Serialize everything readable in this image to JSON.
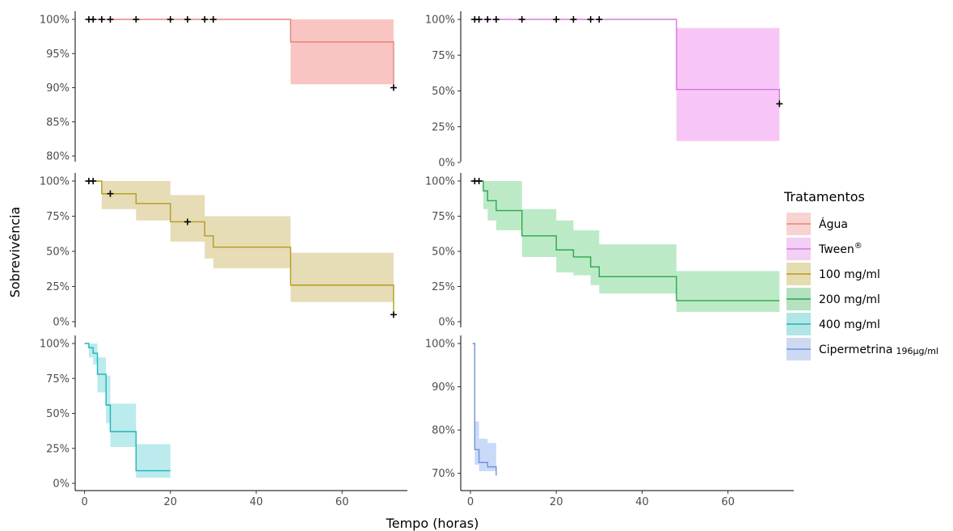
{
  "xlabel": "Tempo (horas)",
  "ylabel": "Sobrevivência",
  "legend": {
    "title": "Tratamentos",
    "items": [
      {
        "label": "Água",
        "sup": "",
        "suffix": "",
        "color": "#e8837a"
      },
      {
        "label": "Tween",
        "sup": "®",
        "suffix": "",
        "color": "#d877e0"
      },
      {
        "label": "100 mg/ml",
        "sup": "",
        "suffix": "",
        "color": "#b59c1c"
      },
      {
        "label": "200 mg/ml",
        "sup": "",
        "suffix": "",
        "color": "#2aa84a"
      },
      {
        "label": "400 mg/ml",
        "sup": "",
        "suffix": "",
        "color": "#1fb5b8"
      },
      {
        "label": "Cipermetrina",
        "sup": "",
        "suffix": "196µg/ml",
        "color": "#6f93d6"
      }
    ]
  },
  "chart_data": [
    {
      "type": "line",
      "series_name": "Água",
      "color": "#e8837a",
      "fill": "#f7b2ad",
      "x_ticks": [
        0,
        20,
        40,
        60
      ],
      "ylim": [
        80,
        100
      ],
      "y_ticks": [
        80,
        85,
        90,
        95,
        100
      ],
      "y_tick_labels": [
        "80%",
        "85%",
        "90%",
        "95%",
        "100%"
      ],
      "steps": [
        {
          "x": 0,
          "y": 100
        },
        {
          "x": 48,
          "y": 96.7
        },
        {
          "x": 72,
          "y": 90
        }
      ],
      "band": [
        {
          "x": 0,
          "lo": 100,
          "hi": 100
        },
        {
          "x": 48,
          "lo": 90.5,
          "hi": 100
        },
        {
          "x": 72,
          "lo": 90.5,
          "hi": 100
        }
      ],
      "censors": [
        {
          "x": 1,
          "y": 100
        },
        {
          "x": 2,
          "y": 100
        },
        {
          "x": 4,
          "y": 100
        },
        {
          "x": 6,
          "y": 100
        },
        {
          "x": 12,
          "y": 100
        },
        {
          "x": 20,
          "y": 100
        },
        {
          "x": 24,
          "y": 100
        },
        {
          "x": 28,
          "y": 100
        },
        {
          "x": 30,
          "y": 100
        },
        {
          "x": 72,
          "y": 90
        }
      ]
    },
    {
      "type": "line",
      "series_name": "Tween®",
      "color": "#d877e0",
      "fill": "#f4b3f3",
      "x_ticks": [
        0,
        20,
        40,
        60
      ],
      "ylim": [
        0,
        100
      ],
      "y_ticks": [
        0,
        25,
        50,
        75,
        100
      ],
      "y_tick_labels": [
        "0%",
        "25%",
        "50%",
        "75%",
        "100%"
      ],
      "steps": [
        {
          "x": 0,
          "y": 100
        },
        {
          "x": 48,
          "y": 51
        },
        {
          "x": 72,
          "y": 41
        }
      ],
      "band": [
        {
          "x": 0,
          "lo": 100,
          "hi": 100
        },
        {
          "x": 48,
          "lo": 15,
          "hi": 94
        },
        {
          "x": 72,
          "lo": 15,
          "hi": 94
        }
      ],
      "censors": [
        {
          "x": 1,
          "y": 100
        },
        {
          "x": 2,
          "y": 100
        },
        {
          "x": 4,
          "y": 100
        },
        {
          "x": 6,
          "y": 100
        },
        {
          "x": 12,
          "y": 100
        },
        {
          "x": 20,
          "y": 100
        },
        {
          "x": 24,
          "y": 100
        },
        {
          "x": 28,
          "y": 100
        },
        {
          "x": 30,
          "y": 100
        },
        {
          "x": 72,
          "y": 41
        }
      ]
    },
    {
      "type": "line",
      "series_name": "100 mg/ml",
      "color": "#b59c1c",
      "fill": "#ddd09e",
      "x_ticks": [
        0,
        20,
        40,
        60
      ],
      "ylim": [
        0,
        100
      ],
      "y_ticks": [
        0,
        25,
        50,
        75,
        100
      ],
      "y_tick_labels": [
        "0%",
        "25%",
        "50%",
        "75%",
        "100%"
      ],
      "steps": [
        {
          "x": 0,
          "y": 100
        },
        {
          "x": 4,
          "y": 91
        },
        {
          "x": 12,
          "y": 84
        },
        {
          "x": 20,
          "y": 71
        },
        {
          "x": 28,
          "y": 61
        },
        {
          "x": 30,
          "y": 53
        },
        {
          "x": 48,
          "y": 26
        },
        {
          "x": 72,
          "y": 5
        }
      ],
      "band": [
        {
          "x": 0,
          "lo": 100,
          "hi": 100
        },
        {
          "x": 4,
          "lo": 80,
          "hi": 100
        },
        {
          "x": 12,
          "lo": 72,
          "hi": 100
        },
        {
          "x": 20,
          "lo": 57,
          "hi": 90
        },
        {
          "x": 28,
          "lo": 45,
          "hi": 75
        },
        {
          "x": 30,
          "lo": 38,
          "hi": 75
        },
        {
          "x": 48,
          "lo": 14,
          "hi": 49
        },
        {
          "x": 72,
          "lo": 14,
          "hi": 49
        }
      ],
      "censors": [
        {
          "x": 1,
          "y": 100
        },
        {
          "x": 2,
          "y": 100
        },
        {
          "x": 6,
          "y": 91
        },
        {
          "x": 24,
          "y": 71
        },
        {
          "x": 72,
          "y": 5
        }
      ]
    },
    {
      "type": "line",
      "series_name": "200 mg/ml",
      "color": "#2aa84a",
      "fill": "#a6e3b4",
      "x_ticks": [
        0,
        20,
        40,
        60
      ],
      "ylim": [
        0,
        100
      ],
      "y_ticks": [
        0,
        25,
        50,
        75,
        100
      ],
      "y_tick_labels": [
        "0%",
        "25%",
        "50%",
        "75%",
        "100%"
      ],
      "steps": [
        {
          "x": 0,
          "y": 100
        },
        {
          "x": 3,
          "y": 93
        },
        {
          "x": 4,
          "y": 86
        },
        {
          "x": 6,
          "y": 79
        },
        {
          "x": 12,
          "y": 61
        },
        {
          "x": 20,
          "y": 51
        },
        {
          "x": 24,
          "y": 46
        },
        {
          "x": 28,
          "y": 39
        },
        {
          "x": 30,
          "y": 32
        },
        {
          "x": 48,
          "y": 15
        },
        {
          "x": 72,
          "y": 15
        }
      ],
      "band": [
        {
          "x": 0,
          "lo": 100,
          "hi": 100
        },
        {
          "x": 3,
          "lo": 80,
          "hi": 100
        },
        {
          "x": 4,
          "lo": 72,
          "hi": 100
        },
        {
          "x": 6,
          "lo": 65,
          "hi": 100
        },
        {
          "x": 12,
          "lo": 46,
          "hi": 80
        },
        {
          "x": 20,
          "lo": 35,
          "hi": 72
        },
        {
          "x": 24,
          "lo": 33,
          "hi": 65
        },
        {
          "x": 28,
          "lo": 26,
          "hi": 65
        },
        {
          "x": 30,
          "lo": 20,
          "hi": 55
        },
        {
          "x": 48,
          "lo": 7,
          "hi": 36
        },
        {
          "x": 72,
          "lo": 7,
          "hi": 36
        }
      ],
      "censors": [
        {
          "x": 1,
          "y": 100
        },
        {
          "x": 2,
          "y": 100
        }
      ]
    },
    {
      "type": "line",
      "series_name": "400 mg/ml",
      "color": "#1fb5b8",
      "fill": "#a4e4e7",
      "x_ticks": [
        0,
        20,
        40,
        60
      ],
      "ylim": [
        0,
        100
      ],
      "y_ticks": [
        0,
        25,
        50,
        75,
        100
      ],
      "y_tick_labels": [
        "0%",
        "25%",
        "50%",
        "75%",
        "100%"
      ],
      "steps": [
        {
          "x": 0,
          "y": 100
        },
        {
          "x": 1,
          "y": 97
        },
        {
          "x": 2,
          "y": 93
        },
        {
          "x": 3,
          "y": 78
        },
        {
          "x": 5,
          "y": 56
        },
        {
          "x": 6,
          "y": 37
        },
        {
          "x": 12,
          "y": 9
        },
        {
          "x": 20,
          "y": 9
        }
      ],
      "band": [
        {
          "x": 0,
          "lo": 100,
          "hi": 100
        },
        {
          "x": 1,
          "lo": 90,
          "hi": 100
        },
        {
          "x": 2,
          "lo": 85,
          "hi": 100
        },
        {
          "x": 3,
          "lo": 65,
          "hi": 90
        },
        {
          "x": 5,
          "lo": 43,
          "hi": 77
        },
        {
          "x": 6,
          "lo": 26,
          "hi": 57
        },
        {
          "x": 12,
          "lo": 4,
          "hi": 28
        },
        {
          "x": 20,
          "lo": 4,
          "hi": 28
        }
      ],
      "censors": []
    },
    {
      "type": "line",
      "series_name": "Cipermetrina 196µg/ml",
      "color": "#6f93d6",
      "fill": "#b7cef5",
      "x_ticks": [
        0,
        20,
        40,
        60
      ],
      "ylim": [
        69,
        100
      ],
      "y_ticks": [
        70,
        80,
        90,
        100
      ],
      "y_tick_labels": [
        "70%",
        "80%",
        "90%",
        "100%"
      ],
      "steps": [
        {
          "x": 0.5,
          "y": 100
        },
        {
          "x": 1,
          "y": 75.5
        },
        {
          "x": 2,
          "y": 72.5
        },
        {
          "x": 4,
          "y": 71.5
        },
        {
          "x": 6,
          "y": 70.3
        },
        {
          "x": 6,
          "y": 69.5
        }
      ],
      "band": [
        {
          "x": 0.5,
          "lo": 100,
          "hi": 100
        },
        {
          "x": 1,
          "lo": 72,
          "hi": 82
        },
        {
          "x": 2,
          "lo": 70.5,
          "hi": 78
        },
        {
          "x": 4,
          "lo": 70.5,
          "hi": 77
        },
        {
          "x": 6,
          "lo": 70.5,
          "hi": 77
        }
      ],
      "censors": []
    }
  ]
}
